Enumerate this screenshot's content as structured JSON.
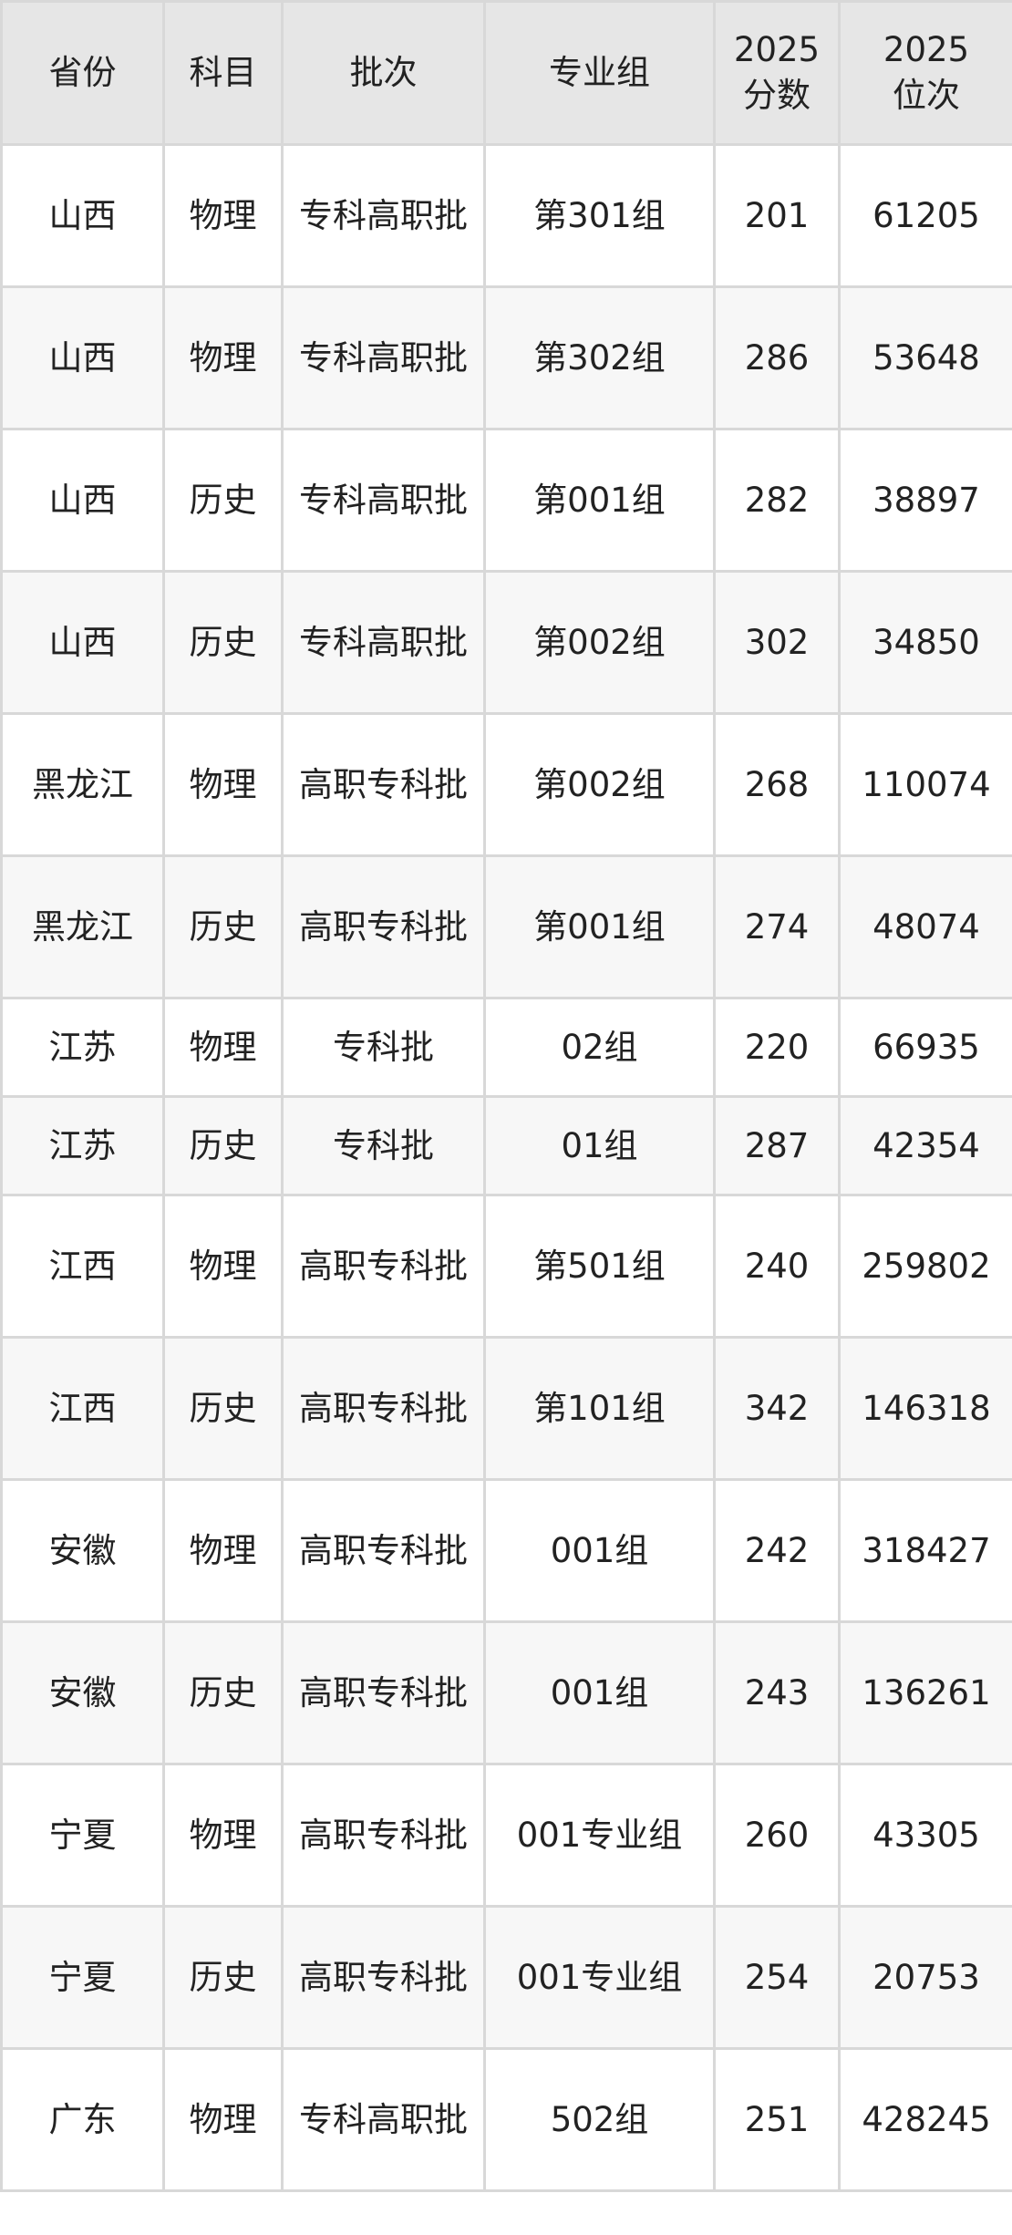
{
  "table": {
    "headers": [
      "省份",
      "科目",
      "批次",
      "专业组",
      "2025\n分数",
      "2025\n位次"
    ],
    "header_lines": [
      [
        "2025",
        "分数"
      ],
      [
        "2025",
        "位次"
      ]
    ],
    "rows": [
      [
        "山西",
        "物理",
        "专科高职批",
        "第301组",
        "201",
        "61205"
      ],
      [
        "山西",
        "物理",
        "专科高职批",
        "第302组",
        "286",
        "53648"
      ],
      [
        "山西",
        "历史",
        "专科高职批",
        "第001组",
        "282",
        "38897"
      ],
      [
        "山西",
        "历史",
        "专科高职批",
        "第002组",
        "302",
        "34850"
      ],
      [
        "黑龙江",
        "物理",
        "高职专科批",
        "第002组",
        "268",
        "110074"
      ],
      [
        "黑龙江",
        "历史",
        "高职专科批",
        "第001组",
        "274",
        "48074"
      ],
      [
        "江苏",
        "物理",
        "专科批",
        "02组",
        "220",
        "66935"
      ],
      [
        "江苏",
        "历史",
        "专科批",
        "01组",
        "287",
        "42354"
      ],
      [
        "江西",
        "物理",
        "高职专科批",
        "第501组",
        "240",
        "259802"
      ],
      [
        "江西",
        "历史",
        "高职专科批",
        "第101组",
        "342",
        "146318"
      ],
      [
        "安徽",
        "物理",
        "高职专科批",
        "001组",
        "242",
        "318427"
      ],
      [
        "安徽",
        "历史",
        "高职专科批",
        "001组",
        "243",
        "136261"
      ],
      [
        "宁夏",
        "物理",
        "高职专科批",
        "001专业组",
        "260",
        "43305"
      ],
      [
        "宁夏",
        "历史",
        "高职专科批",
        "001专业组",
        "254",
        "20753"
      ],
      [
        "广东",
        "物理",
        "专科高职批",
        "502组",
        "251",
        "428245"
      ]
    ]
  }
}
